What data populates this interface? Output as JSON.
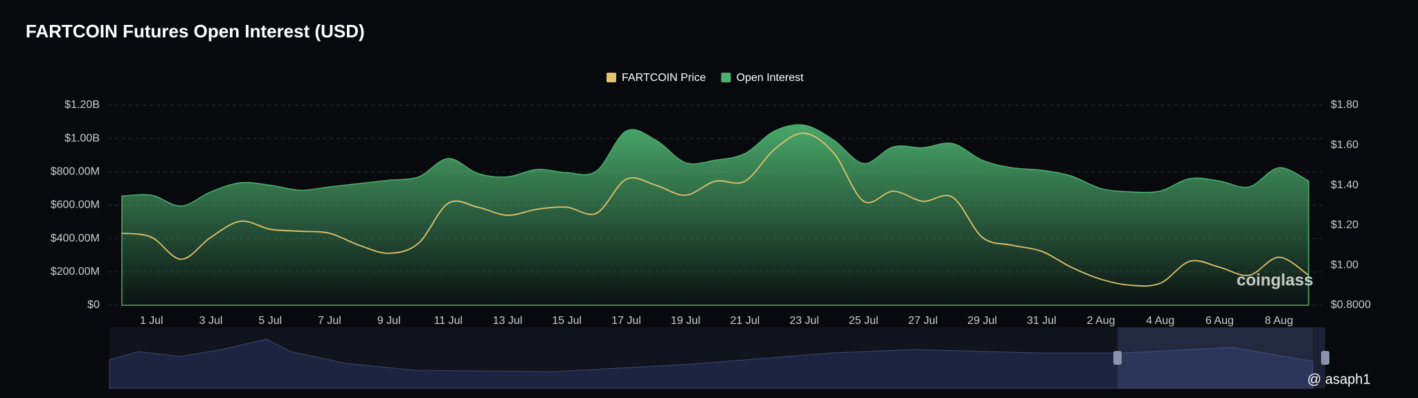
{
  "chart_data": {
    "type": "area-line",
    "title": "FARTCOIN Futures Open Interest (USD)",
    "categories": [
      null,
      "1 Jul",
      null,
      "3 Jul",
      null,
      "5 Jul",
      null,
      "7 Jul",
      null,
      "9 Jul",
      null,
      "11 Jul",
      null,
      "13 Jul",
      null,
      "15 Jul",
      null,
      "17 Jul",
      null,
      "19 Jul",
      null,
      "21 Jul",
      null,
      "23 Jul",
      null,
      "25 Jul",
      null,
      "27 Jul",
      null,
      "29 Jul",
      null,
      "31 Jul",
      null,
      "2 Aug",
      null,
      "4 Aug",
      null,
      "6 Aug",
      null,
      "8 Aug",
      null
    ],
    "series": [
      {
        "name": "FARTCOIN Price",
        "color": "#e3c36b",
        "axis": "y2",
        "values": [
          1.16,
          1.14,
          1.03,
          1.14,
          1.22,
          1.18,
          1.17,
          1.16,
          1.1,
          1.06,
          1.11,
          1.31,
          1.29,
          1.25,
          1.28,
          1.29,
          1.26,
          1.43,
          1.4,
          1.35,
          1.42,
          1.42,
          1.58,
          1.66,
          1.56,
          1.32,
          1.37,
          1.32,
          1.34,
          1.14,
          1.1,
          1.07,
          0.99,
          0.93,
          0.9,
          0.91,
          1.02,
          0.99,
          0.95,
          1.04,
          0.95
        ]
      },
      {
        "name": "Open Interest",
        "color": "#4caf6e",
        "values": [
          655000000,
          660000000,
          595000000,
          680000000,
          735000000,
          720000000,
          690000000,
          710000000,
          730000000,
          750000000,
          770000000,
          880000000,
          790000000,
          770000000,
          815000000,
          795000000,
          805000000,
          1045000000,
          990000000,
          855000000,
          870000000,
          910000000,
          1045000000,
          1080000000,
          990000000,
          850000000,
          950000000,
          945000000,
          970000000,
          870000000,
          825000000,
          810000000,
          775000000,
          700000000,
          680000000,
          685000000,
          760000000,
          745000000,
          710000000,
          825000000,
          745000000
        ]
      }
    ],
    "ylim": [
      0,
      1200000000
    ],
    "yticks": [
      {
        "value": 0,
        "label": "$0"
      },
      {
        "value": 200000000,
        "label": "$200.00M"
      },
      {
        "value": 400000000,
        "label": "$400.00M"
      },
      {
        "value": 600000000,
        "label": "$600.00M"
      },
      {
        "value": 800000000,
        "label": "$800.00M"
      },
      {
        "value": 1000000000,
        "label": "$1.00B"
      },
      {
        "value": 1200000000,
        "label": "$1.20B"
      }
    ],
    "y2lim": [
      0.8,
      1.8
    ],
    "y2ticks": [
      {
        "value": 0.8,
        "label": "$0.8000"
      },
      {
        "value": 1.0,
        "label": "$1.00"
      },
      {
        "value": 1.2,
        "label": "$1.20"
      },
      {
        "value": 1.4,
        "label": "$1.40"
      },
      {
        "value": 1.6,
        "label": "$1.60"
      },
      {
        "value": 1.8,
        "label": "$1.80"
      }
    ],
    "grid": true,
    "legend": "top",
    "watermark": "coinglass",
    "credit": "@ asaph1"
  }
}
